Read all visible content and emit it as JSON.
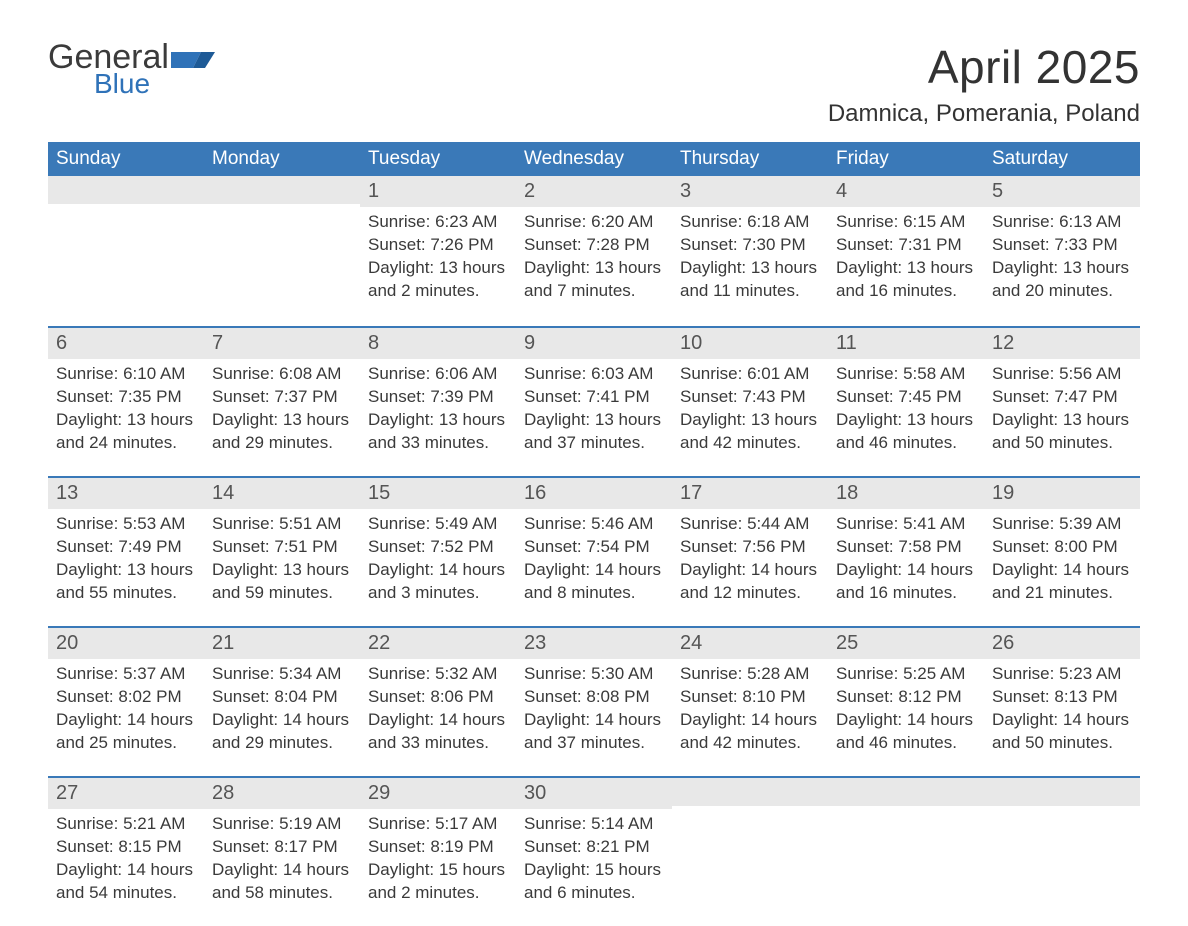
{
  "brand": {
    "word1": "General",
    "word2": "Blue"
  },
  "title": "April 2025",
  "location": "Damnica, Pomerania, Poland",
  "colors": {
    "header_bg": "#3a79b8",
    "header_text": "#ffffff",
    "band_bg": "#e8e8e8",
    "rule": "#3a79b8",
    "text": "#3a3a3a",
    "brand_blue": "#2f72b8"
  },
  "dow": [
    "Sunday",
    "Monday",
    "Tuesday",
    "Wednesday",
    "Thursday",
    "Friday",
    "Saturday"
  ],
  "weeks": [
    [
      null,
      null,
      {
        "n": "1",
        "sr": "Sunrise: 6:23 AM",
        "ss": "Sunset: 7:26 PM",
        "d1": "Daylight: 13 hours",
        "d2": "and 2 minutes."
      },
      {
        "n": "2",
        "sr": "Sunrise: 6:20 AM",
        "ss": "Sunset: 7:28 PM",
        "d1": "Daylight: 13 hours",
        "d2": "and 7 minutes."
      },
      {
        "n": "3",
        "sr": "Sunrise: 6:18 AM",
        "ss": "Sunset: 7:30 PM",
        "d1": "Daylight: 13 hours",
        "d2": "and 11 minutes."
      },
      {
        "n": "4",
        "sr": "Sunrise: 6:15 AM",
        "ss": "Sunset: 7:31 PM",
        "d1": "Daylight: 13 hours",
        "d2": "and 16 minutes."
      },
      {
        "n": "5",
        "sr": "Sunrise: 6:13 AM",
        "ss": "Sunset: 7:33 PM",
        "d1": "Daylight: 13 hours",
        "d2": "and 20 minutes."
      }
    ],
    [
      {
        "n": "6",
        "sr": "Sunrise: 6:10 AM",
        "ss": "Sunset: 7:35 PM",
        "d1": "Daylight: 13 hours",
        "d2": "and 24 minutes."
      },
      {
        "n": "7",
        "sr": "Sunrise: 6:08 AM",
        "ss": "Sunset: 7:37 PM",
        "d1": "Daylight: 13 hours",
        "d2": "and 29 minutes."
      },
      {
        "n": "8",
        "sr": "Sunrise: 6:06 AM",
        "ss": "Sunset: 7:39 PM",
        "d1": "Daylight: 13 hours",
        "d2": "and 33 minutes."
      },
      {
        "n": "9",
        "sr": "Sunrise: 6:03 AM",
        "ss": "Sunset: 7:41 PM",
        "d1": "Daylight: 13 hours",
        "d2": "and 37 minutes."
      },
      {
        "n": "10",
        "sr": "Sunrise: 6:01 AM",
        "ss": "Sunset: 7:43 PM",
        "d1": "Daylight: 13 hours",
        "d2": "and 42 minutes."
      },
      {
        "n": "11",
        "sr": "Sunrise: 5:58 AM",
        "ss": "Sunset: 7:45 PM",
        "d1": "Daylight: 13 hours",
        "d2": "and 46 minutes."
      },
      {
        "n": "12",
        "sr": "Sunrise: 5:56 AM",
        "ss": "Sunset: 7:47 PM",
        "d1": "Daylight: 13 hours",
        "d2": "and 50 minutes."
      }
    ],
    [
      {
        "n": "13",
        "sr": "Sunrise: 5:53 AM",
        "ss": "Sunset: 7:49 PM",
        "d1": "Daylight: 13 hours",
        "d2": "and 55 minutes."
      },
      {
        "n": "14",
        "sr": "Sunrise: 5:51 AM",
        "ss": "Sunset: 7:51 PM",
        "d1": "Daylight: 13 hours",
        "d2": "and 59 minutes."
      },
      {
        "n": "15",
        "sr": "Sunrise: 5:49 AM",
        "ss": "Sunset: 7:52 PM",
        "d1": "Daylight: 14 hours",
        "d2": "and 3 minutes."
      },
      {
        "n": "16",
        "sr": "Sunrise: 5:46 AM",
        "ss": "Sunset: 7:54 PM",
        "d1": "Daylight: 14 hours",
        "d2": "and 8 minutes."
      },
      {
        "n": "17",
        "sr": "Sunrise: 5:44 AM",
        "ss": "Sunset: 7:56 PM",
        "d1": "Daylight: 14 hours",
        "d2": "and 12 minutes."
      },
      {
        "n": "18",
        "sr": "Sunrise: 5:41 AM",
        "ss": "Sunset: 7:58 PM",
        "d1": "Daylight: 14 hours",
        "d2": "and 16 minutes."
      },
      {
        "n": "19",
        "sr": "Sunrise: 5:39 AM",
        "ss": "Sunset: 8:00 PM",
        "d1": "Daylight: 14 hours",
        "d2": "and 21 minutes."
      }
    ],
    [
      {
        "n": "20",
        "sr": "Sunrise: 5:37 AM",
        "ss": "Sunset: 8:02 PM",
        "d1": "Daylight: 14 hours",
        "d2": "and 25 minutes."
      },
      {
        "n": "21",
        "sr": "Sunrise: 5:34 AM",
        "ss": "Sunset: 8:04 PM",
        "d1": "Daylight: 14 hours",
        "d2": "and 29 minutes."
      },
      {
        "n": "22",
        "sr": "Sunrise: 5:32 AM",
        "ss": "Sunset: 8:06 PM",
        "d1": "Daylight: 14 hours",
        "d2": "and 33 minutes."
      },
      {
        "n": "23",
        "sr": "Sunrise: 5:30 AM",
        "ss": "Sunset: 8:08 PM",
        "d1": "Daylight: 14 hours",
        "d2": "and 37 minutes."
      },
      {
        "n": "24",
        "sr": "Sunrise: 5:28 AM",
        "ss": "Sunset: 8:10 PM",
        "d1": "Daylight: 14 hours",
        "d2": "and 42 minutes."
      },
      {
        "n": "25",
        "sr": "Sunrise: 5:25 AM",
        "ss": "Sunset: 8:12 PM",
        "d1": "Daylight: 14 hours",
        "d2": "and 46 minutes."
      },
      {
        "n": "26",
        "sr": "Sunrise: 5:23 AM",
        "ss": "Sunset: 8:13 PM",
        "d1": "Daylight: 14 hours",
        "d2": "and 50 minutes."
      }
    ],
    [
      {
        "n": "27",
        "sr": "Sunrise: 5:21 AM",
        "ss": "Sunset: 8:15 PM",
        "d1": "Daylight: 14 hours",
        "d2": "and 54 minutes."
      },
      {
        "n": "28",
        "sr": "Sunrise: 5:19 AM",
        "ss": "Sunset: 8:17 PM",
        "d1": "Daylight: 14 hours",
        "d2": "and 58 minutes."
      },
      {
        "n": "29",
        "sr": "Sunrise: 5:17 AM",
        "ss": "Sunset: 8:19 PM",
        "d1": "Daylight: 15 hours",
        "d2": "and 2 minutes."
      },
      {
        "n": "30",
        "sr": "Sunrise: 5:14 AM",
        "ss": "Sunset: 8:21 PM",
        "d1": "Daylight: 15 hours",
        "d2": "and 6 minutes."
      },
      null,
      null,
      null
    ]
  ]
}
